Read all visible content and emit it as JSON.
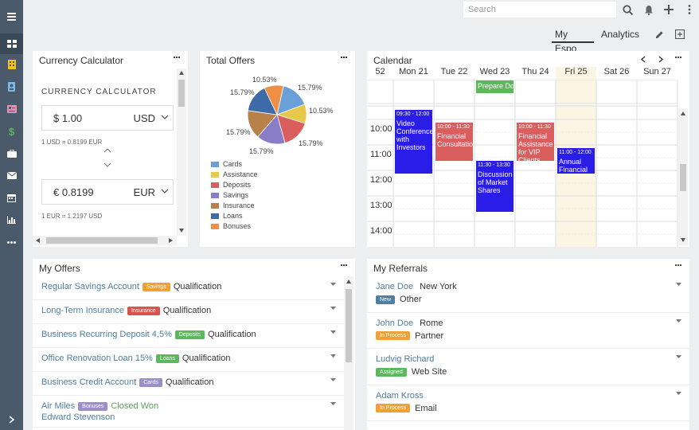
{
  "topbar": {
    "search_placeholder": "Search"
  },
  "tabs": [
    {
      "label": "My Espo"
    },
    {
      "label": "Analytics"
    }
  ],
  "currency": {
    "title": "Currency Calculator",
    "heading": "CURRENCY CALCULATOR",
    "from": {
      "symbol": "$",
      "amount": "1.00",
      "currency": "USD"
    },
    "from_rate": "1 USD = 0.8199 EUR",
    "to": {
      "symbol": "€",
      "amount": "0.8199",
      "currency": "EUR"
    },
    "to_rate": "1 EUR = 1.2197 USD"
  },
  "offers_chart": {
    "title": "Total Offers",
    "chart_data": {
      "type": "pie",
      "categories": [
        "Cards",
        "Assistance",
        "Deposits",
        "Savings",
        "Insurance",
        "Loans",
        "Bonuses"
      ],
      "values": [
        15.79,
        10.53,
        15.79,
        15.79,
        15.79,
        15.79,
        10.53
      ],
      "labels": [
        "15.79%",
        "10.53%",
        "15.79%",
        "15.79%",
        "15.79%",
        "15.79%",
        "10.53%"
      ],
      "colors": [
        "#6aa0d8",
        "#e8c84a",
        "#d95f5f",
        "#8a7dc8",
        "#b9814a",
        "#3e6aa8",
        "#ee8f45"
      ],
      "legend_position": "bottom-left"
    }
  },
  "calendar": {
    "title": "Calendar",
    "week_number": "52",
    "days": [
      "Mon 21",
      "Tue 22",
      "Wed 23",
      "Thu 24",
      "Fri 25",
      "Sat 26",
      "Sun 27"
    ],
    "allday_event": "Prepare Do",
    "times": [
      "10:00",
      "11:00",
      "12:00",
      "13:00",
      "14:00"
    ],
    "events": [
      {
        "time": "09:30 - 12:00",
        "title": "Video Conference with Investors",
        "color": "#2a1de8"
      },
      {
        "time": "10:00 - 11:30",
        "title": "Financial Consultation",
        "color": "#d95f5f"
      },
      {
        "time": "11:30 - 13:30",
        "title": "Discussion of Market Shares",
        "color": "#2a1de8"
      },
      {
        "time": "10:00 - 11:30",
        "title": "Financial Assistance for VIP Clients",
        "color": "#d95f5f"
      },
      {
        "time": "11:00 - 12:00",
        "title": "Annual Financial",
        "color": "#2a1de8"
      }
    ]
  },
  "my_offers": {
    "title": "My Offers",
    "rows": [
      {
        "name": "Regular Savings Account",
        "badge": "Savings",
        "badge_color": "#eea236",
        "status": "Qualification",
        "status_color": "#333"
      },
      {
        "name": "Long-Term Insurance",
        "badge": "Insurance",
        "badge_color": "#d9534f",
        "status": "Qualification",
        "status_color": "#333"
      },
      {
        "name": "Business Recurring Deposit 4,5%",
        "badge": "Deposits",
        "badge_color": "#5cb85c",
        "status": "Qualification",
        "status_color": "#333"
      },
      {
        "name": "Office Renovation Loan 15%",
        "badge": "Loans",
        "badge_color": "#5cb85c",
        "status": "Qualification",
        "status_color": "#333"
      },
      {
        "name": "Business Credit Account",
        "badge": "Cards",
        "badge_color": "#9b8fc6",
        "status": "Qualification",
        "status_color": "#333"
      },
      {
        "name": "Air Miles",
        "badge": "Bonuses",
        "badge_color": "#9b8fc6",
        "status": "Closed Won",
        "status_color": "#5aa05a",
        "contact": "Edward Stevenson"
      }
    ]
  },
  "my_referrals": {
    "title": "My Referrals",
    "rows": [
      {
        "name": "Jane Doe",
        "city": "New York",
        "badge": "New",
        "badge_color": "#4e7ea0",
        "type": "Other"
      },
      {
        "name": "John Doe",
        "city": "Rome",
        "badge": "In Process",
        "badge_color": "#eea236",
        "type": "Partner"
      },
      {
        "name": "Ludvig Richard",
        "city": "",
        "badge": "Assigned",
        "badge_color": "#5cb85c",
        "type": "Web Site"
      },
      {
        "name": "Adam Kross",
        "city": "",
        "badge": "In Process",
        "badge_color": "#eea236",
        "type": "Email"
      }
    ]
  }
}
